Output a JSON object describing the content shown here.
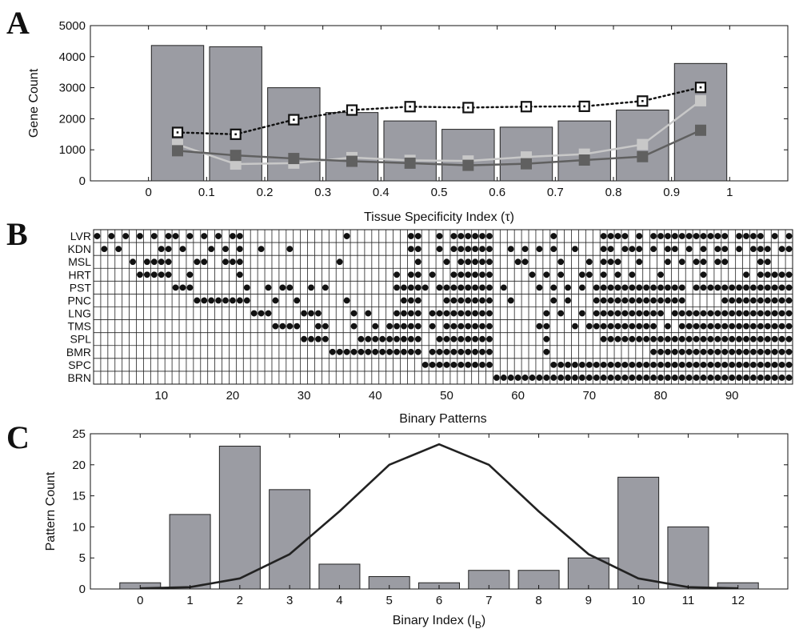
{
  "chart_data": [
    {
      "panel": "A",
      "type": "bar",
      "xlabel": "Tissue Specificity Index (τ)",
      "ylabel": "Gene Count",
      "xlim": [
        -0.1,
        1.1
      ],
      "ylim": [
        0,
        5000
      ],
      "xticks": [
        0,
        0.1,
        0.2,
        0.3,
        0.4,
        0.5,
        0.6,
        0.7,
        0.8,
        0.9,
        1
      ],
      "yticks": [
        0,
        1000,
        2000,
        3000,
        4000,
        5000
      ],
      "x": [
        0.05,
        0.15,
        0.25,
        0.35,
        0.45,
        0.55,
        0.65,
        0.75,
        0.85,
        0.95
      ],
      "values": [
        4360,
        4320,
        3000,
        2200,
        1930,
        1660,
        1730,
        1930,
        2280,
        3780
      ],
      "bar_color": "#9b9ca3",
      "series": [
        {
          "marker": "open-square-dotted",
          "color": "#111111",
          "values": [
            1560,
            1500,
            1970,
            2280,
            2390,
            2360,
            2390,
            2400,
            2570,
            3010
          ]
        },
        {
          "marker": "filled-square",
          "color": "#c8c8c8",
          "values": [
            1170,
            540,
            570,
            750,
            660,
            640,
            770,
            860,
            1170,
            2580
          ]
        },
        {
          "marker": "filled-square",
          "color": "#606060",
          "values": [
            970,
            820,
            720,
            630,
            570,
            500,
            550,
            670,
            780,
            1630
          ]
        }
      ]
    },
    {
      "panel": "B",
      "type": "heatmap",
      "xlabel": "Binary Patterns",
      "xticks": [
        10,
        20,
        30,
        40,
        50,
        60,
        70,
        80,
        90
      ],
      "n_patterns": 98,
      "rows": [
        "LVR",
        "KDN",
        "MSL",
        "HRT",
        "PST",
        "PNC",
        "LNG",
        "TMS",
        "SPL",
        "BMR",
        "SPC",
        "BRN"
      ],
      "dots": [
        [
          1,
          3,
          5,
          7,
          9,
          11,
          12,
          14,
          16,
          18,
          20,
          21,
          36,
          45,
          46,
          49,
          51,
          52,
          53,
          54,
          55,
          56,
          65,
          72,
          73,
          74,
          75,
          77,
          79,
          80,
          81,
          82,
          83,
          84,
          85,
          86,
          87,
          88,
          89,
          91,
          92,
          93,
          94,
          96,
          98
        ],
        [
          2,
          4,
          10,
          11,
          13,
          17,
          19,
          21,
          24,
          28,
          45,
          46,
          49,
          51,
          52,
          53,
          54,
          55,
          56,
          59,
          61,
          63,
          65,
          68,
          72,
          73,
          75,
          76,
          77,
          79,
          81,
          82,
          84,
          86,
          88,
          89,
          91,
          93,
          94,
          95,
          97,
          98
        ],
        [
          6,
          8,
          9,
          10,
          11,
          15,
          16,
          19,
          20,
          21,
          35,
          46,
          50,
          52,
          53,
          54,
          55,
          56,
          60,
          61,
          66,
          70,
          72,
          73,
          74,
          77,
          81,
          83,
          85,
          86,
          88,
          89,
          94,
          95
        ],
        [
          7,
          8,
          9,
          10,
          11,
          14,
          21,
          43,
          45,
          46,
          48,
          51,
          52,
          53,
          54,
          55,
          56,
          62,
          64,
          66,
          69,
          70,
          72,
          74,
          76,
          80,
          86,
          92,
          94,
          95,
          96,
          97,
          98
        ],
        [
          12,
          13,
          14,
          22,
          25,
          27,
          28,
          31,
          33,
          43,
          44,
          45,
          46,
          47,
          49,
          50,
          51,
          52,
          53,
          54,
          55,
          56,
          58,
          63,
          65,
          67,
          69,
          71,
          72,
          73,
          74,
          75,
          76,
          77,
          78,
          79,
          80,
          81,
          82,
          83,
          85,
          86,
          87,
          88,
          89,
          90,
          91,
          92,
          93,
          94,
          95,
          96,
          97,
          98
        ],
        [
          15,
          16,
          17,
          18,
          19,
          20,
          21,
          22,
          26,
          29,
          36,
          44,
          45,
          46,
          50,
          51,
          52,
          53,
          54,
          55,
          56,
          59,
          65,
          67,
          71,
          72,
          73,
          74,
          75,
          76,
          77,
          78,
          79,
          80,
          81,
          82,
          83,
          89,
          90,
          91,
          92,
          93,
          94,
          95,
          96,
          97,
          98
        ],
        [
          23,
          24,
          25,
          30,
          31,
          32,
          37,
          39,
          43,
          44,
          45,
          46,
          48,
          49,
          50,
          51,
          52,
          53,
          54,
          55,
          56,
          64,
          66,
          69,
          71,
          72,
          73,
          74,
          75,
          76,
          77,
          78,
          79,
          80,
          82,
          83,
          84,
          85,
          86,
          87,
          88,
          89,
          90,
          91,
          92,
          93,
          94,
          95,
          96,
          97,
          98
        ],
        [
          26,
          27,
          28,
          29,
          32,
          33,
          37,
          40,
          42,
          43,
          44,
          45,
          46,
          48,
          50,
          51,
          52,
          53,
          54,
          55,
          56,
          63,
          64,
          68,
          70,
          71,
          72,
          73,
          74,
          75,
          76,
          77,
          78,
          79,
          81,
          83,
          84,
          85,
          86,
          87,
          88,
          89,
          90,
          91,
          92,
          93,
          94,
          95,
          96,
          97,
          98
        ],
        [
          30,
          31,
          32,
          33,
          38,
          39,
          40,
          41,
          42,
          43,
          44,
          45,
          46,
          49,
          50,
          51,
          52,
          53,
          54,
          55,
          56,
          64,
          72,
          73,
          74,
          75,
          76,
          77,
          78,
          79,
          80,
          81,
          82,
          83,
          84,
          85,
          86,
          87,
          88,
          89,
          90,
          91,
          92,
          93,
          94,
          95,
          96,
          97,
          98
        ],
        [
          34,
          35,
          36,
          37,
          38,
          39,
          40,
          41,
          42,
          43,
          44,
          45,
          46,
          48,
          49,
          50,
          51,
          52,
          53,
          54,
          55,
          56,
          64,
          79,
          80,
          81,
          82,
          83,
          84,
          85,
          86,
          87,
          88,
          89,
          90,
          91,
          92,
          93,
          94,
          95,
          96,
          97,
          98
        ],
        [
          47,
          48,
          49,
          50,
          51,
          52,
          53,
          54,
          55,
          56,
          65,
          66,
          67,
          68,
          69,
          70,
          71,
          72,
          73,
          74,
          75,
          76,
          77,
          78,
          79,
          80,
          81,
          82,
          83,
          84,
          85,
          86,
          87,
          88,
          89,
          90,
          91,
          92,
          93,
          94,
          95,
          96,
          97,
          98
        ],
        [
          57,
          58,
          59,
          60,
          61,
          62,
          63,
          64,
          65,
          66,
          67,
          68,
          69,
          70,
          71,
          72,
          73,
          74,
          75,
          76,
          77,
          78,
          79,
          80,
          81,
          82,
          83,
          84,
          85,
          86,
          87,
          88,
          89,
          90,
          91,
          92,
          93,
          94,
          95,
          96,
          97,
          98
        ]
      ]
    },
    {
      "panel": "C",
      "type": "bar",
      "xlabel": "Binary Index (I",
      "xlabel_sub": "B",
      "xlabel_tail": ")",
      "ylabel": "Pattern Count",
      "categories": [
        "0",
        "1",
        "2",
        "3",
        "4",
        "5",
        "6",
        "7",
        "8",
        "9",
        "10",
        "11",
        "12"
      ],
      "values": [
        1,
        12,
        23,
        16,
        4,
        2,
        1,
        3,
        3,
        5,
        18,
        10,
        1
      ],
      "ylim": [
        0,
        25
      ],
      "yticks": [
        0,
        5,
        10,
        15,
        20,
        25
      ],
      "bar_color": "#9b9ca3",
      "series": [
        {
          "type": "line",
          "color": "#222222",
          "values": [
            0.1,
            0.3,
            1.7,
            5.6,
            12.5,
            20.0,
            23.3,
            20.0,
            12.5,
            5.6,
            1.7,
            0.3,
            0.1
          ]
        }
      ]
    }
  ]
}
